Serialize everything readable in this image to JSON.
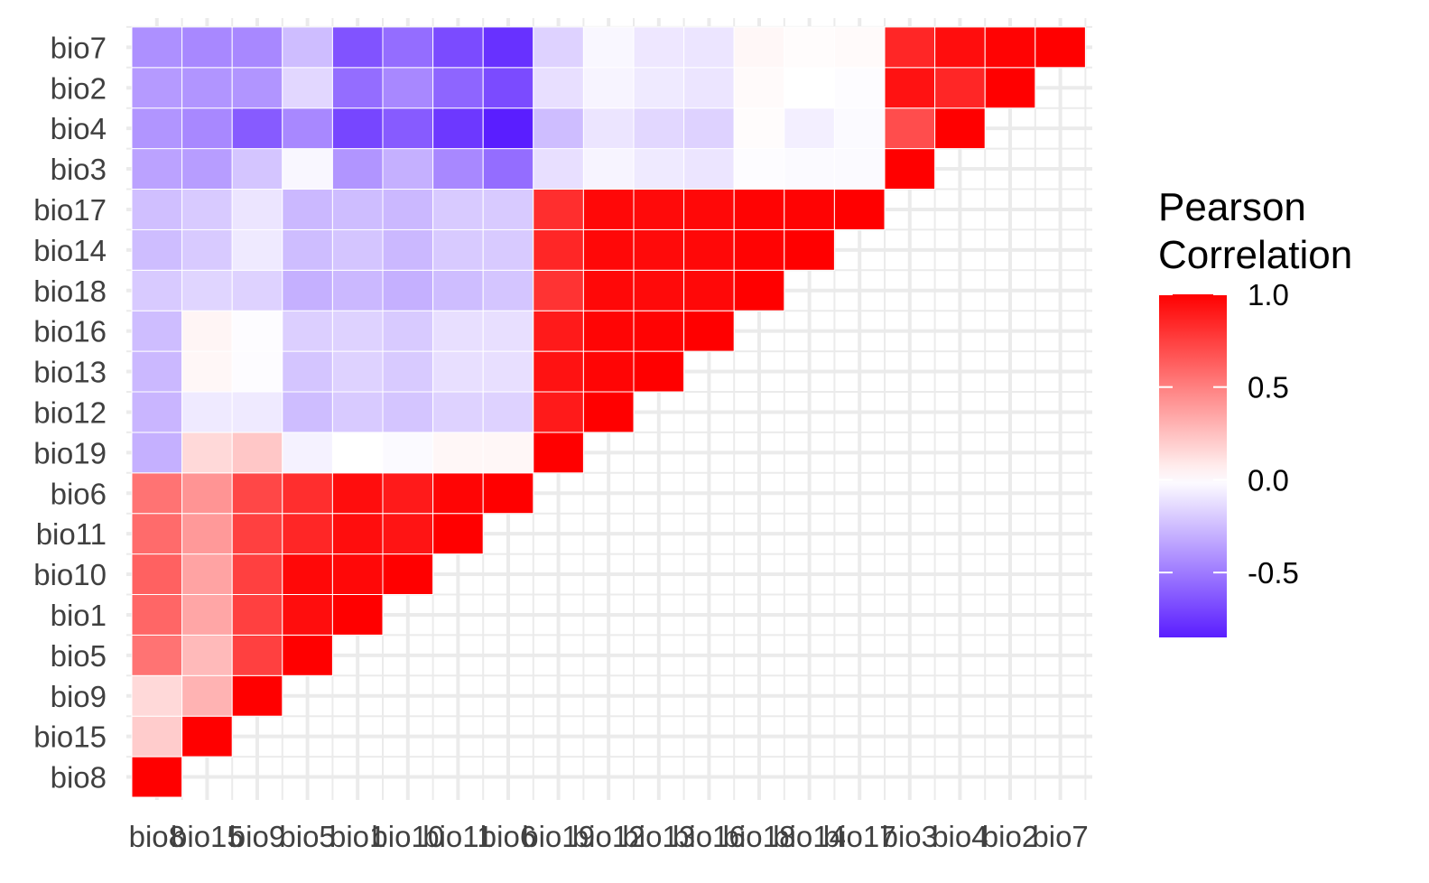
{
  "chart_data": {
    "type": "heatmap",
    "title": "",
    "xlabel": "",
    "ylabel": "",
    "variables": [
      "bio8",
      "bio15",
      "bio9",
      "bio5",
      "bio1",
      "bio10",
      "bio11",
      "bio6",
      "bio19",
      "bio12",
      "bio13",
      "bio16",
      "bio18",
      "bio14",
      "bio17",
      "bio3",
      "bio4",
      "bio2",
      "bio7"
    ],
    "layout": "lower-triangle",
    "legend": {
      "title_lines": [
        "Pearson",
        "Correlation"
      ],
      "ticks": [
        1.0,
        0.5,
        0.0,
        -0.5
      ],
      "tick_labels": [
        "1.0",
        "0.5",
        "0.0",
        "-0.5"
      ],
      "limits": [
        -0.85,
        1.0
      ],
      "position": "right"
    },
    "colors": {
      "high": "#ff0000",
      "mid": "#ffffff",
      "low": "#5a1eff",
      "grid": "#ebebeb",
      "tile_border": "#ffffff"
    },
    "matrix": [
      [
        1.0
      ],
      [
        0.2,
        1.0
      ],
      [
        0.15,
        0.3,
        1.0
      ],
      [
        0.55,
        0.27,
        0.75,
        1.0
      ],
      [
        0.6,
        0.35,
        0.75,
        0.95,
        1.0
      ],
      [
        0.62,
        0.36,
        0.75,
        0.97,
        0.97,
        1.0
      ],
      [
        0.58,
        0.4,
        0.75,
        0.85,
        0.95,
        0.92,
        1.0
      ],
      [
        0.55,
        0.42,
        0.72,
        0.82,
        0.95,
        0.9,
        0.98,
        1.0
      ],
      [
        -0.3,
        0.15,
        0.22,
        -0.05,
        0.0,
        -0.02,
        0.03,
        0.03,
        1.0
      ],
      [
        -0.28,
        -0.08,
        -0.08,
        -0.25,
        -0.2,
        -0.22,
        -0.17,
        -0.17,
        0.9,
        1.0
      ],
      [
        -0.27,
        0.03,
        -0.01,
        -0.22,
        -0.17,
        -0.2,
        -0.12,
        -0.12,
        0.93,
        0.98,
        1.0
      ],
      [
        -0.25,
        0.04,
        -0.01,
        -0.18,
        -0.17,
        -0.2,
        -0.12,
        -0.12,
        0.9,
        0.98,
        0.99,
        1.0
      ],
      [
        -0.2,
        -0.16,
        -0.17,
        -0.3,
        -0.27,
        -0.3,
        -0.25,
        -0.22,
        0.8,
        0.97,
        0.96,
        0.97,
        1.0
      ],
      [
        -0.25,
        -0.2,
        -0.08,
        -0.25,
        -0.22,
        -0.27,
        -0.2,
        -0.2,
        0.85,
        0.97,
        0.96,
        0.97,
        0.99,
        1.0
      ],
      [
        -0.24,
        -0.2,
        -0.1,
        -0.27,
        -0.25,
        -0.27,
        -0.2,
        -0.2,
        0.82,
        0.97,
        0.96,
        0.97,
        0.99,
        0.99,
        1.0
      ],
      [
        -0.35,
        -0.37,
        -0.22,
        -0.03,
        -0.4,
        -0.3,
        -0.45,
        -0.55,
        -0.12,
        -0.04,
        -0.08,
        -0.1,
        -0.01,
        -0.02,
        -0.02,
        1.0
      ],
      [
        -0.4,
        -0.45,
        -0.62,
        -0.45,
        -0.7,
        -0.62,
        -0.75,
        -0.85,
        -0.25,
        -0.1,
        -0.15,
        -0.17,
        0.01,
        -0.06,
        -0.02,
        0.7,
        1.0
      ],
      [
        -0.38,
        -0.4,
        -0.4,
        -0.15,
        -0.55,
        -0.45,
        -0.58,
        -0.68,
        -0.12,
        -0.04,
        -0.08,
        -0.1,
        0.02,
        0.0,
        -0.01,
        0.93,
        0.85,
        1.0
      ],
      [
        -0.42,
        -0.45,
        -0.45,
        -0.25,
        -0.65,
        -0.55,
        -0.68,
        -0.78,
        -0.17,
        -0.03,
        -0.09,
        -0.1,
        0.03,
        0.01,
        0.02,
        0.85,
        0.95,
        0.99,
        1.0
      ]
    ]
  }
}
